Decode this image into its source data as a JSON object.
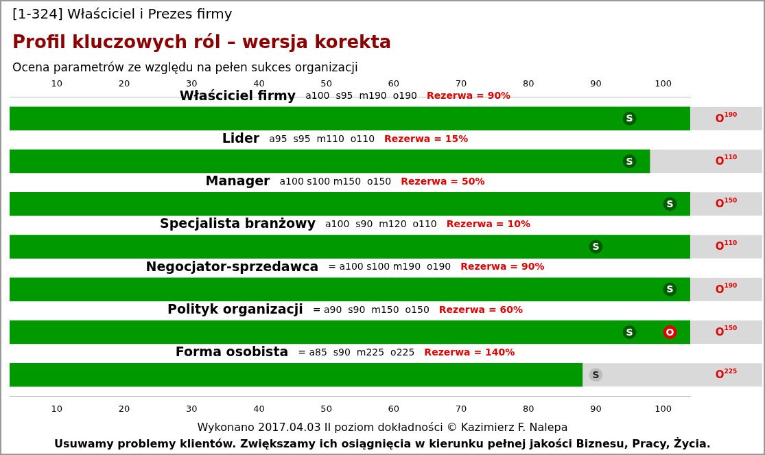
{
  "chart_data": {
    "type": "bar",
    "orientation": "horizontal",
    "title": "Profil kluczowych ról – wersja korekta",
    "subtitle": "Ocena parametrów ze względu na pełen sukces organizacji",
    "categories": [
      "Właściciel firmy",
      "Lider",
      "Manager",
      "Specjalista branżowy",
      "Negocjator-sprzedawca",
      "Polityk organizacji",
      "Forma osobista"
    ],
    "series": [
      {
        "color": "#009900",
        "values": [
          104,
          98,
          104,
          104,
          104,
          104,
          88
        ]
      },
      {
        "type": "scatter",
        "name": "S",
        "colors": [
          "#005a00",
          "#005a00",
          "#005a00",
          "#005a00",
          "#005a00",
          "#005a00",
          "#bdbdbd"
        ],
        "values": [
          95,
          95,
          101,
          90,
          101,
          95,
          90
        ]
      },
      {
        "type": "scatter",
        "name": "O",
        "color": "#e00000",
        "values": [
          null,
          null,
          null,
          null,
          null,
          101,
          null
        ]
      }
    ],
    "marker": "circle",
    "xlim": [
      3,
      104
    ],
    "xticks": [
      10,
      20,
      30,
      40,
      50,
      60,
      70,
      80,
      90,
      100
    ],
    "x2lim": [
      3,
      104
    ],
    "x2ticks": [
      10,
      20,
      30,
      40,
      50,
      60,
      70,
      80,
      90,
      100
    ],
    "legend": false,
    "annotations": [
      "[1-324] Właściciel i Prezes firmy",
      "a100  s95  m190  o190",
      "Rezerwa = 90%",
      "a95  s95  m110  o110",
      "Rezerwa = 15%",
      "a100 s100 m150  o150",
      "Rezerwa = 50%",
      "a100  s90  m120  o110",
      "Rezerwa = 10%",
      "= a100 s100 m190  o190",
      "Rezerwa = 90%",
      "= a90  s90  m150  o150",
      "Rezerwa = 60%",
      "= a85  s90  m225  o225",
      "Rezerwa = 140%",
      "O$^{190}$",
      "O$^{110}$",
      "O$^{150}$",
      "O$^{110}$",
      "O$^{190}$",
      "O$^{150}$",
      "O$^{225}$",
      "Wykonano 2017.04.03   II poziom dokładności    © Kazimierz F. Nalepa",
      "Usuwamy problemy klientów. Zwiększamy ich osiągnięcia w kierunku pełnej jakości Biznesu, Pracy, Życia."
    ]
  }
}
